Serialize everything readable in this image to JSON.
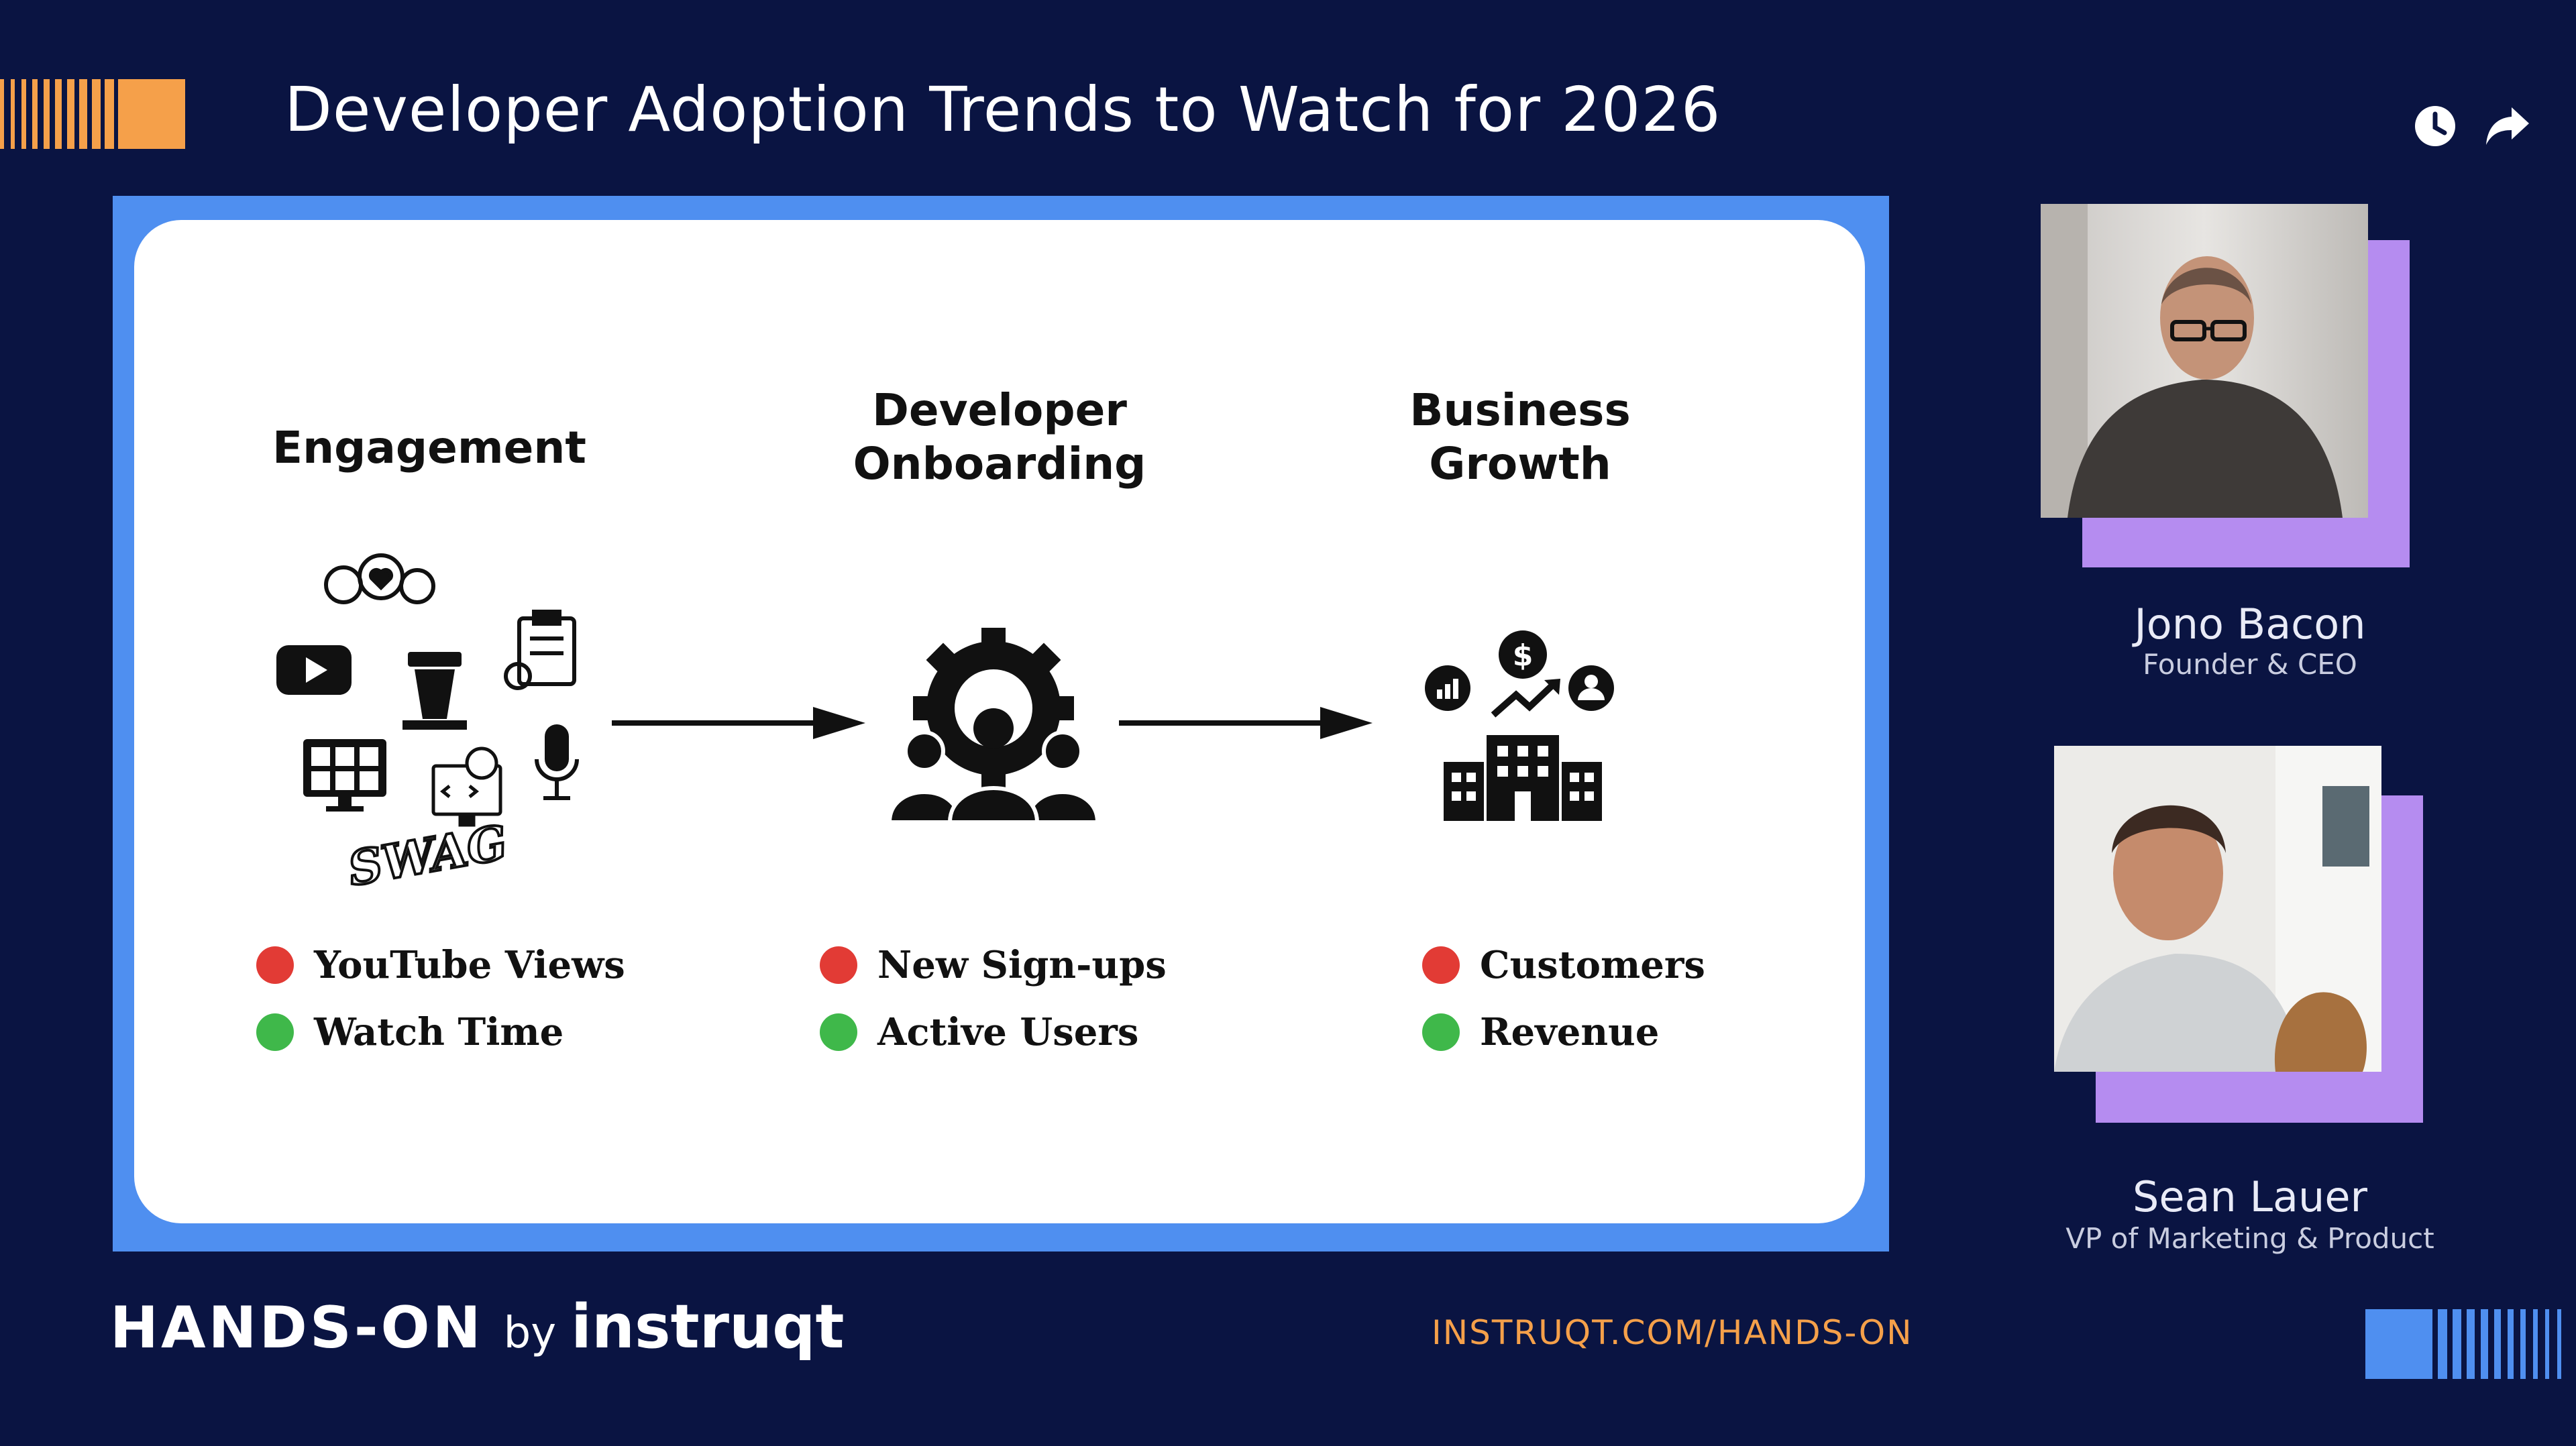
{
  "header": {
    "title": "Developer Adoption Trends to Watch for 2026",
    "icons": [
      "clock-icon",
      "share-icon"
    ]
  },
  "slide": {
    "columns": [
      {
        "heading_lines": [
          "Engagement"
        ],
        "icon": "engagement-icons-cluster",
        "metrics": [
          {
            "label": "YouTube Views",
            "status": "red"
          },
          {
            "label": "Watch Time",
            "status": "green"
          }
        ]
      },
      {
        "heading_lines": [
          "Developer",
          "Onboarding"
        ],
        "icon": "team-gear-icon",
        "metrics": [
          {
            "label": "New Sign-ups",
            "status": "red"
          },
          {
            "label": "Active Users",
            "status": "green"
          }
        ]
      },
      {
        "heading_lines": [
          "Business",
          "Growth"
        ],
        "icon": "business-growth-icon",
        "metrics": [
          {
            "label": "Customers",
            "status": "red"
          },
          {
            "label": "Revenue",
            "status": "green"
          }
        ]
      }
    ],
    "engagement_swag_text": "SWAG",
    "colors": {
      "red": "#e23b35",
      "green": "#3fb84a",
      "frame": "#4f8ff0",
      "card": "#ffffff"
    }
  },
  "speakers": [
    {
      "name": "Jono Bacon",
      "role": "Founder & CEO"
    },
    {
      "name": "Sean Lauer",
      "role": "VP of Marketing & Product"
    }
  ],
  "footer": {
    "brand_hands_on": "HANDS-ON",
    "brand_by": "by",
    "brand_instruqt": "instruqt",
    "url": "INSTRUQT.COM/HANDS-ON"
  },
  "colors": {
    "background": "#0a1442",
    "accent_orange": "#f5a04a",
    "accent_blue": "#4f8ff0",
    "accent_purple": "#b58cf0"
  }
}
